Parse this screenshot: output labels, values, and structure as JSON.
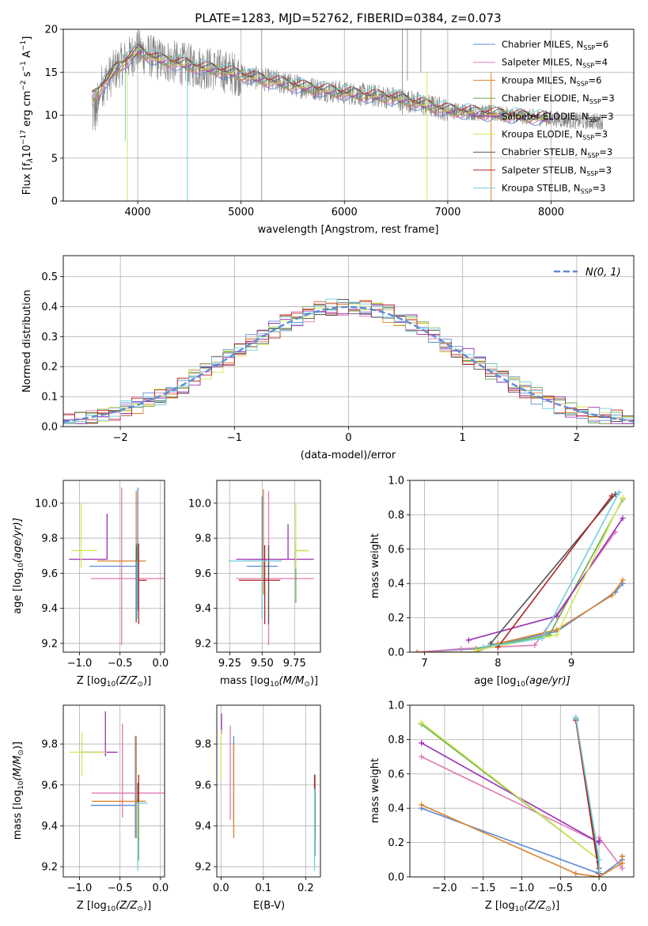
{
  "figure_title": "PLATE=1283, MJD=52762, FIBERID=0384, z=0.073",
  "colors": [
    "#5b8bd6",
    "#e07bb5",
    "#d9822b",
    "#6aa84f",
    "#9b30b5",
    "#d4e85a",
    "#555555",
    "#b22222",
    "#6fd0e0"
  ],
  "legend_main": [
    {
      "name": "Chabrier MILES",
      "n": "6"
    },
    {
      "name": "Salpeter MILES",
      "n": "4"
    },
    {
      "name": "Kroupa MILES",
      "n": "6"
    },
    {
      "name": "Chabrier ELODIE",
      "n": "3"
    },
    {
      "name": "Salpeter ELODIE",
      "n": "3"
    },
    {
      "name": "Kroupa ELODIE",
      "n": "3"
    },
    {
      "name": "Chabrier STELIB",
      "n": "3"
    },
    {
      "name": "Salpeter STELIB",
      "n": "3"
    },
    {
      "name": "Kroupa STELIB",
      "n": "3"
    }
  ],
  "nssp_sub": "SSP",
  "legend_hist": "N(0, 1)",
  "chart_data": [
    {
      "id": "spectrum",
      "type": "line",
      "xlabel": "wavelength [Angstrom, rest frame]",
      "ylabel_main": "Flux [f",
      "ylabel_lambda": "λ",
      "ylabel_rest": "10",
      "ylabel_exp1": "−17",
      "ylabel_mid": " erg cm",
      "ylabel_exp2": "−2",
      "ylabel_mid2": " s",
      "ylabel_exp3": "−1",
      "ylabel_end": " A",
      "ylabel_exp4": "−1",
      "ylabel_close": "]",
      "xlim": [
        3280,
        8800
      ],
      "ylim": [
        0,
        20
      ],
      "xticks": [
        4000,
        5000,
        6000,
        7000,
        8000
      ],
      "yticks": [
        0,
        5,
        10,
        15,
        20
      ],
      "model_anchor_x": [
        3550,
        3800,
        4000,
        4200,
        4500,
        4800,
        5200,
        5600,
        6000,
        6500,
        7000,
        7500,
        8000,
        8300
      ],
      "model_anchor_y": [
        12,
        15.5,
        17.5,
        16.5,
        15.8,
        15.2,
        14.2,
        13.3,
        12.6,
        12.0,
        10.6,
        10.1,
        9.6,
        9.3
      ]
    },
    {
      "id": "residual_hist",
      "type": "bar",
      "xlabel": "(data-model)/error",
      "ylabel": "Normed distribution",
      "xlim": [
        -2.5,
        2.5
      ],
      "ylim": [
        0,
        0.57
      ],
      "xticks": [
        -2,
        -1,
        0,
        1,
        2
      ],
      "xtick_labels": [
        "−2",
        "−1",
        "0",
        "1",
        "2"
      ],
      "yticks": [
        0,
        0.1,
        0.2,
        0.3,
        0.4,
        0.5
      ],
      "ytick_labels": [
        "0.0",
        "0.1",
        "0.2",
        "0.3",
        "0.4",
        "0.5"
      ],
      "bin_width": 0.1
    },
    {
      "id": "Z_vs_age",
      "type": "scatter",
      "xlabel_pre": "Z [log",
      "xlabel_sub": "10",
      "xlabel_arg": "(Z/Z",
      "xlabel_sun": "⊙",
      "xlabel_post": ")]",
      "ylabel_pre": "age  [log",
      "ylabel_sub": "10",
      "ylabel_arg": "(age/yr)]",
      "xlim": [
        -1.2,
        0.05
      ],
      "ylim": [
        9.15,
        10.13
      ],
      "xticks": [
        -1.0,
        -0.5,
        0.0
      ],
      "xtick_labels": [
        "−1.0",
        "−0.5",
        "0.0"
      ],
      "yticks": [
        9.2,
        9.4,
        9.6,
        9.8,
        10.0
      ],
      "ytick_labels": [
        "9.2",
        "9.4",
        "9.6",
        "9.8",
        "10.0"
      ],
      "points": [
        {
          "x": -0.28,
          "y": 9.64,
          "xe": [
            0.6,
            0.0
          ],
          "ye": [
            0.25,
            0.45
          ]
        },
        {
          "x": -0.48,
          "y": 9.57,
          "xe": [
            0.38,
            0.62
          ],
          "ye": [
            0.38,
            0.52
          ]
        },
        {
          "x": -0.3,
          "y": 9.67,
          "xe": [
            0.48,
            0.12
          ],
          "ye": [
            0.22,
            0.4
          ]
        },
        {
          "x": -0.29,
          "y": 9.73,
          "xe": [
            0.0,
            0.0
          ],
          "ye": [
            0.3,
            0.04
          ]
        },
        {
          "x": -0.66,
          "y": 9.68,
          "xe": [
            0.47,
            0.0
          ],
          "ye": [
            0.0,
            0.26
          ]
        },
        {
          "x": -0.98,
          "y": 9.73,
          "xe": [
            0.12,
            0.2
          ],
          "ye": [
            0.1,
            0.27
          ]
        },
        {
          "x": -0.3,
          "y": 9.56,
          "xe": [
            0.0,
            0.0
          ],
          "ye": [
            0.24,
            0.2
          ]
        },
        {
          "x": -0.27,
          "y": 9.56,
          "xe": [
            0.0,
            0.1
          ],
          "ye": [
            0.25,
            0.21
          ]
        },
        {
          "x": -0.29,
          "y": 9.67,
          "xe": [
            0.0,
            0.0
          ],
          "ye": [
            0.33,
            0.0
          ]
        }
      ]
    },
    {
      "id": "mass_vs_age",
      "type": "scatter",
      "xlabel_pre": "mass [log",
      "xlabel_sub": "10",
      "xlabel_arg": "(M/M",
      "xlabel_sun": "⊙",
      "xlabel_post": ")]",
      "xlim": [
        9.15,
        9.95
      ],
      "ylim": [
        9.15,
        10.13
      ],
      "xticks": [
        9.25,
        9.5,
        9.75
      ],
      "xtick_labels": [
        "9.25",
        "9.50",
        "9.75"
      ],
      "yticks": [
        9.2,
        9.4,
        9.6,
        9.8,
        10.0
      ],
      "ytick_labels": [
        "9.2",
        "9.4",
        "9.6",
        "9.8",
        "10.0"
      ],
      "points": [
        {
          "x": 9.5,
          "y": 9.64,
          "xe": [
            0.12,
            0.12
          ],
          "ye": [
            0.3,
            0.4
          ]
        },
        {
          "x": 9.55,
          "y": 9.57,
          "xe": [
            0.25,
            0.35
          ],
          "ye": [
            0.38,
            0.5
          ]
        },
        {
          "x": 9.51,
          "y": 9.68,
          "xe": [
            0.15,
            0.15
          ],
          "ye": [
            0.2,
            0.4
          ]
        },
        {
          "x": 9.76,
          "y": 9.73,
          "xe": [
            0.0,
            0.1
          ],
          "ye": [
            0.3,
            0.05
          ]
        },
        {
          "x": 9.7,
          "y": 9.68,
          "xe": [
            0.4,
            0.2
          ],
          "ye": [
            0.0,
            0.2
          ]
        },
        {
          "x": 9.76,
          "y": 9.73,
          "xe": [
            0.0,
            0.1
          ],
          "ye": [
            0.1,
            0.27
          ]
        },
        {
          "x": 9.55,
          "y": 9.56,
          "xe": [
            0.0,
            0.0
          ],
          "ye": [
            0.25,
            0.2
          ]
        },
        {
          "x": 9.52,
          "y": 9.56,
          "xe": [
            0.2,
            0.12
          ],
          "ye": [
            0.25,
            0.2
          ]
        },
        {
          "x": 9.5,
          "y": 9.67,
          "xe": [
            0.26,
            0.15
          ],
          "ye": [
            0.33,
            0.0
          ]
        }
      ]
    },
    {
      "id": "age_vs_massweight",
      "type": "line",
      "xlabel_pre": "age  [log",
      "xlabel_sub": "10",
      "xlabel_arg": "(age/yr)]",
      "ylabel": "mass weight",
      "xlim": [
        6.8,
        9.85
      ],
      "ylim": [
        0,
        1
      ],
      "xticks": [
        7,
        8,
        9
      ],
      "xtick_labels": [
        "7",
        "8",
        "9"
      ],
      "yticks": [
        0,
        0.2,
        0.4,
        0.6,
        0.8,
        1.0
      ],
      "ytick_labels": [
        "0.0",
        "0.2",
        "0.4",
        "0.6",
        "0.8",
        "1.0"
      ],
      "series": [
        {
          "x": [
            6.9,
            7.7,
            8.0,
            8.8,
            9.6,
            9.7
          ],
          "y": [
            0.0,
            0.02,
            0.05,
            0.12,
            0.35,
            0.4
          ]
        },
        {
          "x": [
            6.9,
            7.5,
            8.5,
            9.6
          ],
          "y": [
            0.0,
            0.02,
            0.04,
            0.7
          ]
        },
        {
          "x": [
            6.9,
            7.7,
            8.0,
            8.8,
            9.55,
            9.7
          ],
          "y": [
            0.0,
            0.0,
            0.05,
            0.13,
            0.33,
            0.42
          ]
        },
        {
          "x": [
            7.7,
            8.7,
            9.7
          ],
          "y": [
            0.02,
            0.1,
            0.89
          ]
        },
        {
          "x": [
            7.6,
            8.8,
            9.7
          ],
          "y": [
            0.07,
            0.21,
            0.78
          ]
        },
        {
          "x": [
            7.7,
            8.8,
            9.7
          ],
          "y": [
            0.01,
            0.1,
            0.9
          ]
        },
        {
          "x": [
            7.9,
            9.6
          ],
          "y": [
            0.05,
            0.92
          ]
        },
        {
          "x": [
            8.0,
            9.55
          ],
          "y": [
            0.03,
            0.91
          ]
        },
        {
          "x": [
            7.8,
            8.6,
            9.65
          ],
          "y": [
            0.03,
            0.08,
            0.93
          ]
        }
      ]
    },
    {
      "id": "Z_vs_mass",
      "type": "scatter",
      "xlabel_pre": "Z [log",
      "xlabel_sub": "10",
      "xlabel_arg": "(Z/Z",
      "xlabel_sun": "⊙",
      "xlabel_post": ")]",
      "ylabel_pre": "mass [log",
      "ylabel_sub": "10",
      "ylabel_arg": "(M/M",
      "ylabel_sun": "⊙",
      "ylabel_post": ")]",
      "xlim": [
        -1.2,
        0.05
      ],
      "ylim": [
        9.15,
        9.99
      ],
      "xticks": [
        -1.0,
        -0.5,
        0.0
      ],
      "xtick_labels": [
        "−1.0",
        "−0.5",
        "0.0"
      ],
      "yticks": [
        9.2,
        9.4,
        9.6,
        9.8
      ],
      "ytick_labels": [
        "9.2",
        "9.4",
        "9.6",
        "9.8"
      ],
      "points": [
        {
          "x": -0.31,
          "y": 9.5,
          "xe": [
            0.55,
            0.0
          ],
          "ye": [
            0.16,
            0.34
          ]
        },
        {
          "x": -0.47,
          "y": 9.56,
          "xe": [
            0.38,
            0.6
          ],
          "ye": [
            0.12,
            0.34
          ]
        },
        {
          "x": -0.3,
          "y": 9.52,
          "xe": [
            0.55,
            0.12
          ],
          "ye": [
            0.18,
            0.32
          ]
        },
        {
          "x": -0.27,
          "y": 9.53,
          "xe": [
            0.0,
            0.0
          ],
          "ye": [
            0.3,
            0.0
          ]
        },
        {
          "x": -0.68,
          "y": 9.76,
          "xe": [
            0.3,
            0.15
          ],
          "ye": [
            0.02,
            0.2
          ]
        },
        {
          "x": -0.97,
          "y": 9.76,
          "xe": [
            0.15,
            0.3
          ],
          "ye": [
            0.12,
            0.1
          ]
        },
        {
          "x": -0.28,
          "y": 9.59,
          "xe": [
            0.0,
            0.0
          ],
          "ye": [
            0.25,
            0.02
          ]
        },
        {
          "x": -0.27,
          "y": 9.6,
          "xe": [
            0.0,
            0.0
          ],
          "ye": [
            0.08,
            0.05
          ]
        },
        {
          "x": -0.28,
          "y": 9.51,
          "xe": [
            0.0,
            0.12
          ],
          "ye": [
            0.33,
            0.0
          ]
        }
      ]
    },
    {
      "id": "EBV_vs_mass",
      "type": "scatter",
      "xlabel": "E(B-V)",
      "xlim": [
        -0.01,
        0.235
      ],
      "ylim": [
        9.15,
        9.99
      ],
      "xticks": [
        0.0,
        0.1,
        0.2
      ],
      "xtick_labels": [
        "0.0",
        "0.1",
        "0.2"
      ],
      "yticks": [
        9.2,
        9.4,
        9.6,
        9.8
      ],
      "ytick_labels": [
        "9.2",
        "9.4",
        "9.6",
        "9.8"
      ],
      "points": [
        {
          "x": 0.03,
          "y": 9.62,
          "ye": [
            0.2,
            0.22
          ]
        },
        {
          "x": 0.022,
          "y": 9.65,
          "ye": [
            0.22,
            0.24
          ]
        },
        {
          "x": 0.03,
          "y": 9.55,
          "ye": [
            0.21,
            0.25
          ]
        },
        {
          "x": 0.222,
          "y": 9.55,
          "ye": [
            0.2,
            0.0
          ]
        },
        {
          "x": 0.001,
          "y": 9.9,
          "ye": [
            0.05,
            0.05
          ]
        },
        {
          "x": 0.0,
          "y": 9.75,
          "ye": [
            0.12,
            0.12
          ]
        },
        {
          "x": 0.222,
          "y": 9.45,
          "ye": [
            0.2,
            0.2
          ]
        },
        {
          "x": 0.221,
          "y": 9.62,
          "ye": [
            0.04,
            0.03
          ]
        },
        {
          "x": 0.221,
          "y": 9.4,
          "ye": [
            0.22,
            0.18
          ]
        }
      ]
    },
    {
      "id": "Z_vs_massweight",
      "type": "line",
      "xlabel_pre": "Z [log",
      "xlabel_sub": "10",
      "xlabel_arg": "(Z/Z",
      "xlabel_sun": "⊙",
      "xlabel_post": ")]",
      "ylabel": "mass weight",
      "xlim": [
        -2.45,
        0.45
      ],
      "ylim": [
        0,
        1
      ],
      "xticks": [
        -2.0,
        -1.5,
        -1.0,
        -0.5,
        0.0
      ],
      "xtick_labels": [
        "−2.0",
        "−1.5",
        "−1.0",
        "−0.5",
        "0.0"
      ],
      "yticks": [
        0,
        0.2,
        0.4,
        0.6,
        0.8,
        1.0
      ],
      "ytick_labels": [
        "0.0",
        "0.2",
        "0.4",
        "0.6",
        "0.8",
        "1.0"
      ],
      "series": [
        {
          "x": [
            -2.3,
            0.0,
            0.0,
            0.3,
            0.3
          ],
          "y": [
            0.4,
            0.02,
            0.0,
            0.1,
            0.12
          ]
        },
        {
          "x": [
            -2.3,
            0.0,
            0.0,
            0.3
          ],
          "y": [
            0.7,
            0.2,
            0.23,
            0.05
          ]
        },
        {
          "x": [
            -2.3,
            -0.3,
            0.0,
            0.3,
            0.3
          ],
          "y": [
            0.42,
            0.02,
            0.0,
            0.08,
            0.12
          ]
        },
        {
          "x": [
            -2.3,
            0.0
          ],
          "y": [
            0.89,
            0.1
          ]
        },
        {
          "x": [
            -2.3,
            0.0,
            0.0
          ],
          "y": [
            0.78,
            0.2,
            0.21
          ]
        },
        {
          "x": [
            -2.3,
            0.0
          ],
          "y": [
            0.9,
            0.1
          ]
        },
        {
          "x": [
            -0.3,
            0.0
          ],
          "y": [
            0.92,
            0.05
          ]
        },
        {
          "x": [
            -0.3,
            0.0
          ],
          "y": [
            0.91,
            0.02
          ]
        },
        {
          "x": [
            -0.3,
            0.0,
            0.0
          ],
          "y": [
            0.93,
            0.1,
            0.03
          ]
        }
      ]
    }
  ]
}
